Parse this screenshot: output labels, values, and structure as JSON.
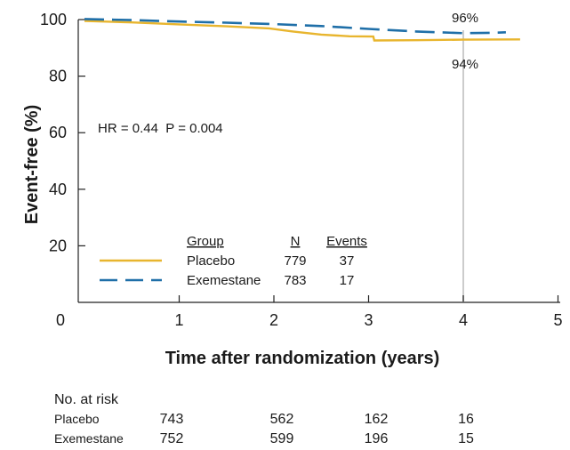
{
  "chart_data": {
    "type": "line",
    "title": "",
    "xlabel": "Time after randomization (years)",
    "ylabel": "Event-free (%)",
    "xlim": [
      0,
      5
    ],
    "ylim": [
      0,
      100
    ],
    "xticks": [
      "0",
      "1",
      "2",
      "3",
      "4",
      "5"
    ],
    "yticks": [
      "20",
      "40",
      "60",
      "80",
      "100"
    ],
    "grid": false,
    "colors": {
      "Placebo": "#E8B52E",
      "Exemestane": "#1F6FA8",
      "marker": "#cccccc"
    },
    "series": [
      {
        "name": "Placebo",
        "x": [
          0,
          0.5,
          1.0,
          1.5,
          1.95,
          2.2,
          2.5,
          2.8,
          3.05,
          3.06,
          3.5,
          4.0,
          4.6
        ],
        "y": [
          99.5,
          99.0,
          98.3,
          97.6,
          96.9,
          95.8,
          94.7,
          94.1,
          94.0,
          92.6,
          92.7,
          92.9,
          93.0
        ]
      },
      {
        "name": "Exemestane",
        "x": [
          0,
          0.5,
          1.0,
          1.5,
          2.0,
          2.5,
          3.0,
          3.5,
          4.0,
          4.3,
          4.45
        ],
        "y": [
          100.2,
          99.8,
          99.3,
          98.9,
          98.4,
          97.7,
          96.7,
          95.8,
          95.2,
          95.3,
          95.5
        ]
      }
    ],
    "annotations": {
      "hr_text": "HR = 0.44  P = 0.004",
      "marker_x": 4,
      "exemestane_label": "96%",
      "placebo_label": "94%"
    },
    "legend": {
      "placement": "bottom-left",
      "header": {
        "group": "Group",
        "n": "N",
        "events": "Events"
      },
      "rows": [
        {
          "group": "Placebo",
          "n": "779",
          "events": "37"
        },
        {
          "group": "Exemestane",
          "n": "783",
          "events": "17"
        }
      ]
    },
    "at_risk": {
      "title": "No. at risk",
      "rows": [
        {
          "label": "Placebo",
          "values": [
            "743",
            "562",
            "162",
            "16"
          ]
        },
        {
          "label": "Exemestane",
          "values": [
            "752",
            "599",
            "196",
            "15"
          ]
        }
      ]
    }
  }
}
